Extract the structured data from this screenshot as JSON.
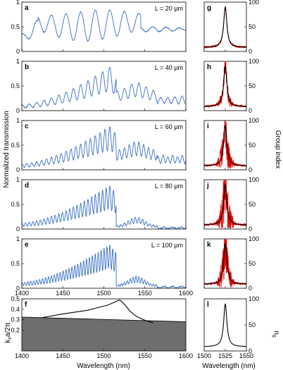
{
  "ylabel_left": "Normalized transmission",
  "ylabel_right": "Group index",
  "xlabel_left": "Wavelength (nm)",
  "xlabel_right": "Wavelength (nm)",
  "panel_f_ylabel": "k",
  "panel_f_ylabel_sub": "x",
  "panel_f_ylabel_rest": "a/2π",
  "panel_l_ylabel": "n",
  "panel_l_ylabel_sub": "g",
  "chart_data": [
    {
      "id": "a",
      "type": "line",
      "label": "a",
      "annotation": "L = 20 µm",
      "xlim": [
        1400,
        1600
      ],
      "ylim": [
        0,
        1
      ],
      "yticks": [
        "0",
        "0.5",
        "1"
      ],
      "series": [
        {
          "color": "#3a6fc4",
          "fringes": 11,
          "envelope": "broad"
        }
      ]
    },
    {
      "id": "b",
      "type": "line",
      "label": "b",
      "annotation": "L = 40 µm",
      "xlim": [
        1400,
        1600
      ],
      "ylim": [
        0,
        1
      ],
      "yticks": [
        "0",
        "0.5",
        "1"
      ],
      "series": [
        {
          "color": "#3a6fc4",
          "fringes": 22,
          "envelope": "peak-1505"
        }
      ]
    },
    {
      "id": "c",
      "type": "line",
      "label": "c",
      "annotation": "L = 60 µm",
      "xlim": [
        1400,
        1600
      ],
      "ylim": [
        0,
        1
      ],
      "yticks": [
        "0",
        "0.5",
        "1"
      ],
      "series": [
        {
          "color": "#3a6fc4",
          "fringes": 33,
          "envelope": "peak-1505"
        }
      ]
    },
    {
      "id": "d",
      "type": "line",
      "label": "d",
      "annotation": "L = 80 µm",
      "xlim": [
        1400,
        1600
      ],
      "ylim": [
        0,
        1
      ],
      "yticks": [
        "0",
        "0.5",
        "1"
      ],
      "series": [
        {
          "color": "#3a6fc4",
          "fringes": 44,
          "envelope": "peak-1505"
        }
      ]
    },
    {
      "id": "e",
      "type": "line",
      "label": "e",
      "annotation": "L = 100 µm",
      "xlim": [
        1400,
        1600
      ],
      "ylim": [
        0,
        1
      ],
      "yticks": [
        "0",
        "0.5",
        "1"
      ],
      "xticks": [
        "1400",
        "1450",
        "1500",
        "1550",
        "1600"
      ],
      "series": [
        {
          "color": "#3a6fc4",
          "fringes": 55,
          "envelope": "peak-1505"
        }
      ]
    },
    {
      "id": "f",
      "type": "line",
      "label": "f",
      "xlim": [
        1400,
        1600
      ],
      "ylim": [
        0,
        0.5
      ],
      "yticks": [
        "0.2",
        "0.3",
        "0.4",
        "0.5"
      ],
      "xticks": [
        "1400",
        "1450",
        "1500",
        "1550",
        "1600"
      ],
      "series": [
        {
          "name": "band",
          "color": "#000000",
          "points": [
            [
              1425,
              0.32
            ],
            [
              1450,
              0.355
            ],
            [
              1480,
              0.39
            ],
            [
              1505,
              0.44
            ],
            [
              1515,
              0.475
            ],
            [
              1519,
              0.49
            ],
            [
              1521,
              0.48
            ],
            [
              1526,
              0.44
            ],
            [
              1532,
              0.38
            ],
            [
              1540,
              0.33
            ],
            [
              1550,
              0.295
            ],
            [
              1560,
              0.27
            ]
          ]
        },
        {
          "name": "light-cone",
          "color": "#6e6e6e",
          "fill": true,
          "points": [
            [
              1400,
              0.325
            ],
            [
              1600,
              0.28
            ]
          ]
        }
      ]
    },
    {
      "id": "g",
      "type": "line",
      "label": "g",
      "xlim": [
        1500,
        1550
      ],
      "ylim": [
        0,
        100
      ],
      "yticks": [
        "0",
        "50",
        "100"
      ],
      "center": 1525,
      "noise": 0.05
    },
    {
      "id": "h",
      "type": "line",
      "label": "h",
      "xlim": [
        1500,
        1550
      ],
      "ylim": [
        0,
        100
      ],
      "yticks": [
        "0",
        "50",
        "100"
      ],
      "center": 1525,
      "noise": 0.25
    },
    {
      "id": "i",
      "type": "line",
      "label": "i",
      "xlim": [
        1500,
        1550
      ],
      "ylim": [
        0,
        100
      ],
      "yticks": [
        "0",
        "50",
        "100"
      ],
      "center": 1525,
      "noise": 0.55
    },
    {
      "id": "j",
      "type": "line",
      "label": "j",
      "xlim": [
        1500,
        1550
      ],
      "ylim": [
        0,
        100
      ],
      "yticks": [
        "0",
        "50",
        "100"
      ],
      "center": 1525,
      "noise": 0.7
    },
    {
      "id": "k",
      "type": "line",
      "label": "k",
      "xlim": [
        1500,
        1550
      ],
      "ylim": [
        0,
        100
      ],
      "yticks": [
        "0",
        "50",
        "100"
      ],
      "center": 1525,
      "noise": 0.6
    },
    {
      "id": "l",
      "type": "line",
      "label": "l",
      "xlim": [
        1500,
        1550
      ],
      "ylim": [
        0,
        100
      ],
      "yticks": [
        "0",
        "50",
        "100"
      ],
      "xticks": [
        "1500",
        "1525",
        "1550"
      ],
      "center": 1525,
      "noise": 0
    }
  ]
}
